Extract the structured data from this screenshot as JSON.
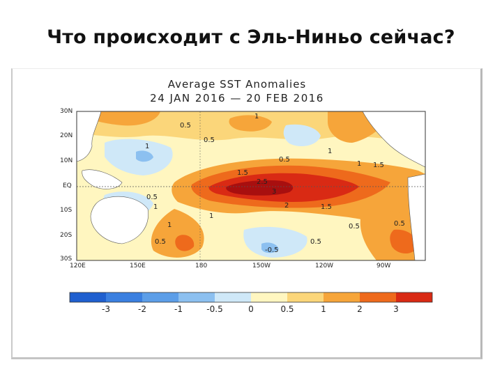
{
  "slide": {
    "title": "Что происходит с Эль-Ниньо сейчас?"
  },
  "map": {
    "title_line1": "Average SST Anomalies",
    "title_line2": "24 JAN 2016 — 20 FEB 2016",
    "lat_ticks": [
      "30N",
      "20N",
      "10N",
      "EQ",
      "10S",
      "20S",
      "30S"
    ],
    "lon_ticks": [
      "120E",
      "150E",
      "180",
      "150W",
      "120W",
      "90W"
    ],
    "contour_labels": [
      "0.5",
      "0.5",
      "0.5",
      "1",
      "1",
      "1",
      "1",
      "1",
      "1",
      "1.5",
      "1.5",
      "1.5",
      "2",
      "2.5",
      "3",
      "0.5",
      "0.5",
      "0.5",
      "-0.5",
      "0.5",
      "1",
      "0.5"
    ],
    "colorbar": {
      "labels": [
        "-3",
        "-2",
        "-1",
        "-0.5",
        "0",
        "0.5",
        "1",
        "2",
        "3"
      ],
      "colors": [
        "#1f5fcf",
        "#3a7fe0",
        "#5c9ee8",
        "#8cc0f0",
        "#cfe8f8",
        "#fff6c0",
        "#fbd67a",
        "#f6a53a",
        "#ee6a1c",
        "#d92a14",
        "#a80f0f"
      ]
    },
    "colors": {
      "land": "#ffffff",
      "neutral_water": "#fff6c0",
      "weak_warm": "#fbd67a",
      "warm": "#f6a53a",
      "strong_warm": "#ee6a1c",
      "very_warm": "#d92a14",
      "extreme_warm": "#a80f0f",
      "cool": "#cfe8f8",
      "cooler": "#8cc0f0"
    }
  }
}
